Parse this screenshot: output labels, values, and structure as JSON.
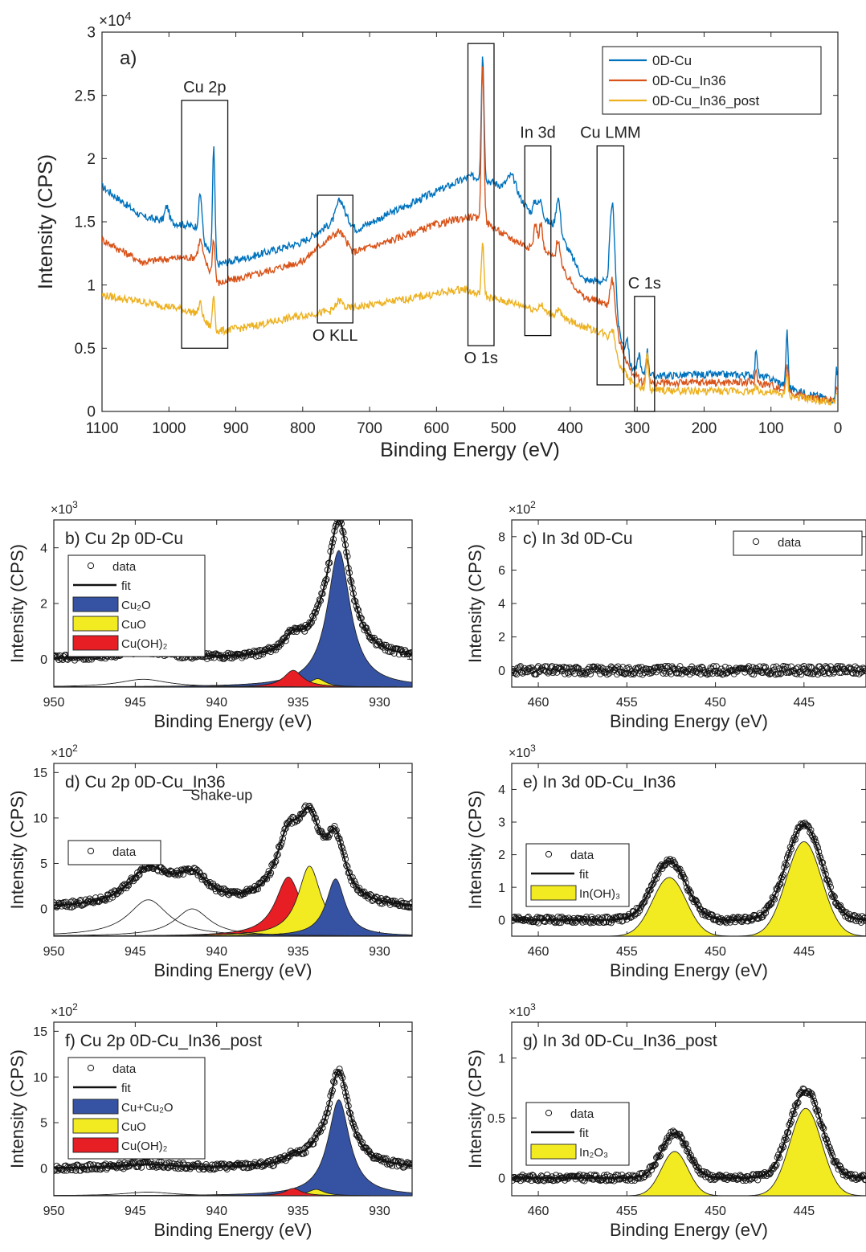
{
  "chart_data": [
    {
      "type": "line",
      "panel_label": "a)",
      "xlabel": "Binding Energy (eV)",
      "ylabel": "Intensity (CPS)",
      "y_exponent": "×10",
      "y_exponent_power": "4",
      "xlim": [
        1100,
        0
      ],
      "ylim": [
        0,
        30000
      ],
      "xticks": [
        1100,
        1000,
        900,
        800,
        700,
        600,
        500,
        400,
        300,
        200,
        100,
        0
      ],
      "yticks": [
        0,
        5000,
        10000,
        15000,
        20000,
        25000,
        30000
      ],
      "ytick_labels": [
        "0",
        "0.5",
        "1",
        "1.5",
        "2",
        "2.5",
        "3"
      ],
      "legend_position": "top-right",
      "series": [
        {
          "name": "0D-Cu",
          "color": "#0072BD",
          "baseline": [
            [
              1100,
              17800
            ],
            [
              1040,
              15400
            ],
            [
              1000,
              15000
            ],
            [
              960,
              14600
            ],
            [
              930,
              11600
            ],
            [
              880,
              12200
            ],
            [
              800,
              13400
            ],
            [
              760,
              14800
            ],
            [
              740,
              15700
            ],
            [
              720,
              14400
            ],
            [
              680,
              15400
            ],
            [
              600,
              17400
            ],
            [
              550,
              18600
            ],
            [
              530,
              18400
            ],
            [
              500,
              17800
            ],
            [
              480,
              17200
            ],
            [
              460,
              15800
            ],
            [
              420,
              14600
            ],
            [
              380,
              10400
            ],
            [
              350,
              10300
            ],
            [
              330,
              6600
            ],
            [
              310,
              3600
            ],
            [
              290,
              2800
            ],
            [
              200,
              2900
            ],
            [
              130,
              2900
            ],
            [
              100,
              2600
            ],
            [
              60,
              1600
            ],
            [
              20,
              1100
            ],
            [
              0,
              800
            ]
          ],
          "peaks": [
            [
              1003,
              1200,
              3
            ],
            [
              953,
              3300,
              2.5
            ],
            [
              933,
              9000,
              1.8
            ],
            [
              745,
              1200,
              5
            ],
            [
              531,
              9800,
              2
            ],
            [
              488,
              1200,
              6
            ],
            [
              444,
              1300,
              3
            ],
            [
              452,
              1100,
              3
            ],
            [
              418,
              2500,
              3
            ],
            [
              337,
              8500,
              4
            ],
            [
              315,
              1500,
              2
            ],
            [
              297,
              1500,
              2
            ],
            [
              285,
              2000,
              2
            ],
            [
              122,
              2200,
              1.5
            ],
            [
              76,
              4500,
              1.5
            ],
            [
              2,
              3000,
              1.2
            ]
          ]
        },
        {
          "name": "0D-Cu_In36",
          "color": "#D95319",
          "baseline": [
            [
              1100,
              13600
            ],
            [
              1040,
              11800
            ],
            [
              1000,
              12100
            ],
            [
              960,
              12200
            ],
            [
              930,
              10100
            ],
            [
              880,
              10700
            ],
            [
              800,
              11900
            ],
            [
              770,
              13300
            ],
            [
              745,
              14300
            ],
            [
              725,
              12600
            ],
            [
              680,
              13300
            ],
            [
              600,
              14800
            ],
            [
              550,
              15400
            ],
            [
              530,
              15100
            ],
            [
              500,
              14000
            ],
            [
              470,
              13200
            ],
            [
              430,
              12400
            ],
            [
              380,
              9000
            ],
            [
              350,
              8600
            ],
            [
              330,
              6000
            ],
            [
              310,
              3200
            ],
            [
              290,
              2200
            ],
            [
              200,
              2300
            ],
            [
              130,
              2300
            ],
            [
              100,
              2100
            ],
            [
              60,
              1300
            ],
            [
              20,
              900
            ],
            [
              0,
              700
            ]
          ],
          "peaks": [
            [
              953,
              1600,
              3
            ],
            [
              945,
              600,
              6
            ],
            [
              933,
              3300,
              2
            ],
            [
              531,
              12500,
              2
            ],
            [
              452,
              2000,
              2.5
            ],
            [
              444,
              2200,
              2.5
            ],
            [
              418,
              2000,
              3
            ],
            [
              337,
              3500,
              4
            ],
            [
              285,
              2000,
              2
            ],
            [
              122,
              900,
              1.5
            ],
            [
              76,
              2200,
              1.5
            ],
            [
              2,
              1000,
              1.2
            ]
          ]
        },
        {
          "name": "0D-Cu_In36_post",
          "color": "#EDB120",
          "baseline": [
            [
              1100,
              9200
            ],
            [
              1000,
              8300
            ],
            [
              960,
              7800
            ],
            [
              930,
              6300
            ],
            [
              880,
              6700
            ],
            [
              800,
              7600
            ],
            [
              750,
              8000
            ],
            [
              700,
              8400
            ],
            [
              600,
              9300
            ],
            [
              560,
              9700
            ],
            [
              530,
              9100
            ],
            [
              480,
              8500
            ],
            [
              420,
              7600
            ],
            [
              380,
              6700
            ],
            [
              350,
              6200
            ],
            [
              330,
              4100
            ],
            [
              310,
              2400
            ],
            [
              290,
              1700
            ],
            [
              200,
              1600
            ],
            [
              130,
              1600
            ],
            [
              100,
              1500
            ],
            [
              60,
              1100
            ],
            [
              20,
              800
            ],
            [
              0,
              600
            ]
          ],
          "peaks": [
            [
              953,
              1100,
              2.5
            ],
            [
              933,
              2800,
              1.8
            ],
            [
              745,
              700,
              5
            ],
            [
              531,
              4000,
              2
            ],
            [
              444,
              500,
              3
            ],
            [
              418,
              500,
              3
            ],
            [
              337,
              1700,
              4
            ],
            [
              285,
              2800,
              2
            ],
            [
              122,
              500,
              1.5
            ],
            [
              76,
              1800,
              1.5
            ],
            [
              2,
              800,
              1.2
            ]
          ]
        }
      ],
      "annotations": [
        {
          "label": "Cu 2p",
          "x_range": [
            981,
            912
          ],
          "y_range": [
            5000,
            24600
          ],
          "label_side": "top"
        },
        {
          "label": "O KLL",
          "x_range": [
            778,
            725
          ],
          "y_range": [
            7000,
            17100
          ],
          "label_side": "bottom"
        },
        {
          "label": "O 1s",
          "x_range": [
            553,
            514
          ],
          "y_range": [
            5200,
            29100
          ],
          "label_side": "bottom"
        },
        {
          "label": "In 3d",
          "x_range": [
            468,
            429
          ],
          "y_range": [
            6000,
            21000
          ],
          "label_side": "top"
        },
        {
          "label": "Cu LMM",
          "x_range": [
            360,
            320
          ],
          "y_range": [
            2100,
            21000
          ],
          "label_side": "top"
        },
        {
          "label": "C 1s",
          "x_range": [
            304,
            274
          ],
          "y_range": [
            0,
            9100
          ],
          "label_side": "top"
        }
      ]
    },
    {
      "type": "line",
      "panel_label": "b) Cu 2p 0D-Cu",
      "xlabel": "Binding Energy (eV)",
      "ylabel": "Intensity (CPS)",
      "y_exponent": "×10",
      "y_exponent_power": "3",
      "xlim": [
        950,
        928
      ],
      "ylim": [
        -1000,
        5000
      ],
      "xticks": [
        950,
        945,
        940,
        935,
        930
      ],
      "yticks": [
        0,
        2000,
        4000
      ],
      "ytick_labels": [
        "0",
        "2",
        "4"
      ],
      "baseline_level": -1000,
      "legend_position": "top-left",
      "legend": [
        "data",
        "fit",
        "Cu₂O",
        "CuO",
        "Cu(OH)₂"
      ],
      "components": [
        {
          "name": "Cu₂O",
          "color": "#3653A3",
          "center": 932.5,
          "height": 4900,
          "width": 0.85
        },
        {
          "name": "CuO",
          "color": "#F2EB22",
          "center": 933.8,
          "height": 300,
          "width": 0.6
        },
        {
          "name": "Cu(OH)₂",
          "color": "#E81E25",
          "center": 935.3,
          "height": 600,
          "width": 0.7
        },
        {
          "name": "satellite",
          "color": "none",
          "center": 944.5,
          "height": 280,
          "width": 1.8
        }
      ],
      "fit_offset": 1000,
      "data_x": [
        950,
        928
      ]
    },
    {
      "type": "scatter",
      "panel_label": "c) In 3d 0D-Cu",
      "xlabel": "Binding Energy (eV)",
      "ylabel": "Intensity (CPS)",
      "y_exponent": "×10",
      "y_exponent_power": "2",
      "xlim": [
        461.5,
        441.5
      ],
      "ylim": [
        -100,
        900
      ],
      "xticks": [
        460,
        455,
        450,
        445
      ],
      "yticks": [
        0,
        200,
        400,
        600,
        800
      ],
      "ytick_labels": [
        "0",
        "2",
        "4",
        "6",
        "8"
      ],
      "legend_position": "top-right",
      "legend": [
        "data"
      ],
      "components": [],
      "noise": 25
    },
    {
      "type": "line",
      "panel_label": "d) Cu 2p 0D-Cu_In36",
      "xlabel": "Binding Energy (eV)",
      "ylabel": "Intensity (CPS)",
      "y_exponent": "×10",
      "y_exponent_power": "2",
      "xlim": [
        950,
        928
      ],
      "ylim": [
        -300,
        1600
      ],
      "xticks": [
        950,
        945,
        940,
        935,
        930
      ],
      "yticks": [
        0,
        500,
        1000,
        1500
      ],
      "ytick_labels": [
        "0",
        "5",
        "10",
        "15"
      ],
      "baseline_level": -300,
      "legend_position": "middle-left",
      "legend": [
        "data"
      ],
      "annotation": "Shake-up",
      "components": [
        {
          "name": "Cu(OH)₂",
          "color": "#E81E25",
          "center": 935.6,
          "height": 650,
          "width": 0.95
        },
        {
          "name": "CuO",
          "color": "#F2EB22",
          "center": 934.3,
          "height": 770,
          "width": 0.85
        },
        {
          "name": "Cu₂O",
          "color": "#3653A3",
          "center": 932.7,
          "height": 630,
          "width": 0.7
        },
        {
          "name": "shake-up 1",
          "color": "none",
          "center": 944.2,
          "height": 400,
          "width": 1.5
        },
        {
          "name": "shake-up 2",
          "color": "none",
          "center": 941.5,
          "height": 300,
          "width": 1.3
        }
      ],
      "fit_offset": 300,
      "data_x": [
        950,
        928
      ]
    },
    {
      "type": "line",
      "panel_label": "e) In 3d 0D-Cu_In36",
      "xlabel": "Binding Energy (eV)",
      "ylabel": "Intensity (CPS)",
      "y_exponent": "×10",
      "y_exponent_power": "3",
      "xlim": [
        461.5,
        441.5
      ],
      "ylim": [
        -500,
        4800
      ],
      "xticks": [
        460,
        455,
        450,
        445
      ],
      "yticks": [
        0,
        1000,
        2000,
        3000,
        4000
      ],
      "ytick_labels": [
        "0",
        "1",
        "2",
        "3",
        "4"
      ],
      "baseline_level": -500,
      "legend_position": "middle-left",
      "legend": [
        "data",
        "fit",
        "In(OH)₃"
      ],
      "components": [
        {
          "name": "In(OH)₃ 3d3/2",
          "color": "#F2EB22",
          "center": 452.6,
          "height": 1800,
          "width": 0.95
        },
        {
          "name": "In(OH)₃ 3d5/2",
          "color": "#F2EB22",
          "center": 445.0,
          "height": 2900,
          "width": 1.0
        }
      ],
      "fit_offset": 500,
      "data_x": [
        461.5,
        441.5
      ]
    },
    {
      "type": "line",
      "panel_label": "f) Cu 2p 0D-Cu_In36_post",
      "xlabel": "Binding Energy (eV)",
      "ylabel": "Intensity (CPS)",
      "y_exponent": "×10",
      "y_exponent_power": "2",
      "xlim": [
        950,
        928
      ],
      "ylim": [
        -300,
        1600
      ],
      "xticks": [
        950,
        945,
        940,
        935,
        930
      ],
      "yticks": [
        0,
        500,
        1000,
        1500
      ],
      "ytick_labels": [
        "0",
        "5",
        "10",
        "15"
      ],
      "baseline_level": -300,
      "legend_position": "top-left",
      "legend": [
        "data",
        "fit",
        "Cu+Cu₂O",
        "CuO",
        "Cu(OH)₂"
      ],
      "components": [
        {
          "name": "Cu+Cu₂O",
          "color": "#3653A3",
          "center": 932.5,
          "height": 1050,
          "width": 0.8
        },
        {
          "name": "CuO",
          "color": "#F2EB22",
          "center": 933.9,
          "height": 70,
          "width": 0.6
        },
        {
          "name": "Cu(OH)₂",
          "color": "#E81E25",
          "center": 935.3,
          "height": 80,
          "width": 0.6
        },
        {
          "name": "satellite",
          "color": "none",
          "center": 944.2,
          "height": 40,
          "width": 1.8
        }
      ],
      "fit_offset": 300,
      "data_x": [
        950,
        928
      ]
    },
    {
      "type": "line",
      "panel_label": "g) In 3d 0D-Cu_In36_post",
      "xlabel": "Binding Energy (eV)",
      "ylabel": "Intensity (CPS)",
      "y_exponent": "×10",
      "y_exponent_power": "3",
      "xlim": [
        461.5,
        441.5
      ],
      "ylim": [
        -150,
        1300
      ],
      "xticks": [
        460,
        455,
        450,
        445
      ],
      "yticks": [
        0,
        500,
        1000
      ],
      "ytick_labels": [
        "0",
        "0.5",
        "1"
      ],
      "baseline_level": -150,
      "legend_position": "middle-left",
      "legend": [
        "data",
        "fit",
        "In₂O₃"
      ],
      "components": [
        {
          "name": "In₂O₃ 3d3/2",
          "color": "#F2EB22",
          "center": 452.3,
          "height": 370,
          "width": 0.75
        },
        {
          "name": "In₂O₃ 3d5/2",
          "color": "#F2EB22",
          "center": 444.9,
          "height": 730,
          "width": 0.9
        }
      ],
      "fit_offset": 150,
      "data_x": [
        461.5,
        441.5
      ]
    }
  ]
}
